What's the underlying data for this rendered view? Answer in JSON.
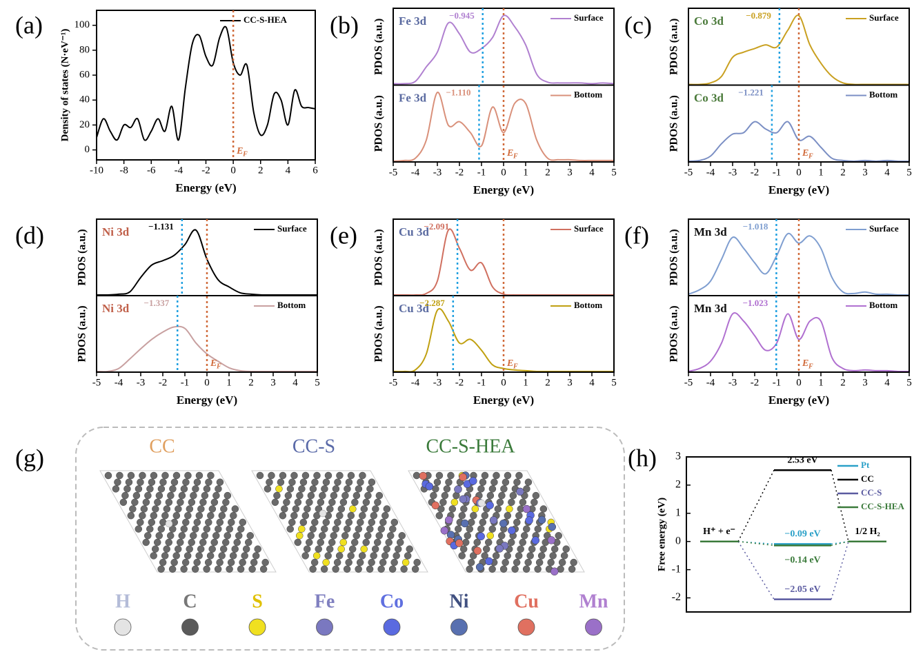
{
  "chart_data": [
    {
      "type": "line",
      "panel": "(a)",
      "xlabel": "Energy (eV)",
      "ylabel": "Density of states (N·eV⁻¹)",
      "xlim": [
        -10,
        6
      ],
      "xticks": [
        -10,
        -8,
        -6,
        -4,
        -2,
        0,
        2,
        4,
        6
      ],
      "ylim": [
        -8,
        112
      ],
      "yticks": [
        0,
        20,
        40,
        60,
        80,
        100
      ],
      "fermi": 0,
      "fermi_label": "E",
      "fermi_subscript": "F",
      "x": [
        -10,
        -9.5,
        -9,
        -8.5,
        -8,
        -7.5,
        -7,
        -6.5,
        -6,
        -5.5,
        -5,
        -4.5,
        -4,
        -3.5,
        -3,
        -2.5,
        -2,
        -1.5,
        -1,
        -0.5,
        0,
        0.5,
        1,
        1.5,
        2,
        2.5,
        3,
        3.5,
        4,
        4.5,
        5,
        5.5,
        6
      ],
      "series": [
        {
          "name": "CC-S-HEA",
          "color": "#000000",
          "values": [
            10,
            25,
            15,
            8,
            20,
            18,
            25,
            8,
            15,
            25,
            15,
            35,
            8,
            50,
            85,
            92,
            75,
            68,
            90,
            98,
            70,
            60,
            68,
            30,
            12,
            20,
            45,
            40,
            20,
            48,
            35,
            34,
            33
          ]
        }
      ]
    },
    {
      "type": "line",
      "panel": "(b)",
      "xlabel": "Energy (eV)",
      "ylabel": "PDOS (a.u.)",
      "element": "Fe 3d",
      "element_color": "#5a6aa0",
      "xlim": [
        -5,
        5
      ],
      "xticks": [
        -5,
        -4,
        -3,
        -2,
        -1,
        0,
        1,
        2,
        3,
        4,
        5
      ],
      "ylim": [
        0,
        105
      ],
      "fermi": 0,
      "fermi_label": "E",
      "fermi_subscript": "F",
      "x": [
        -5,
        -4.5,
        -4,
        -3.5,
        -3,
        -2.5,
        -2,
        -1.5,
        -1,
        -0.5,
        0,
        0.5,
        1,
        1.5,
        2,
        2.5,
        3,
        3.5,
        4,
        4.5,
        5
      ],
      "series": [
        {
          "name": "Surface",
          "color": "#b080d0",
          "center": -0.945,
          "center_label": "−0.945",
          "values": [
            2,
            2,
            5,
            25,
            45,
            85,
            70,
            45,
            50,
            65,
            95,
            80,
            55,
            15,
            4,
            3,
            3,
            3,
            2,
            3,
            2
          ]
        },
        {
          "name": "Bottom",
          "color": "#d9907a",
          "center": -1.11,
          "center_label": "−1.110",
          "values": [
            1,
            2,
            5,
            30,
            95,
            50,
            55,
            40,
            22,
            75,
            40,
            80,
            80,
            30,
            5,
            3,
            3,
            2,
            2,
            2,
            2
          ]
        }
      ]
    },
    {
      "type": "line",
      "panel": "(c)",
      "xlabel": "Energy (eV)",
      "ylabel": "PDOS (a.u.)",
      "element": "Co 3d",
      "element_color": "#4a7a3a",
      "xlim": [
        -5,
        5
      ],
      "xticks": [
        -5,
        -4,
        -3,
        -2,
        -1,
        0,
        1,
        2,
        3,
        4,
        5
      ],
      "ylim": [
        0,
        105
      ],
      "fermi": 0,
      "fermi_label": "E",
      "fermi_subscript": "F",
      "x": [
        -5,
        -4.5,
        -4,
        -3.5,
        -3,
        -2.5,
        -2,
        -1.5,
        -1,
        -0.5,
        0,
        0.5,
        1,
        1.5,
        2,
        2.5,
        3,
        3.5,
        4,
        4.5,
        5
      ],
      "series": [
        {
          "name": "Surface",
          "color": "#c9a020",
          "center": -0.879,
          "center_label": "−0.879",
          "values": [
            1,
            1,
            3,
            12,
            38,
            45,
            50,
            55,
            52,
            75,
            95,
            55,
            30,
            12,
            3,
            1,
            1,
            1,
            1,
            1,
            1
          ]
        },
        {
          "name": "Bottom",
          "color": "#7b8fc4",
          "center": -1.221,
          "center_label": "−1.221",
          "values": [
            1,
            2,
            8,
            25,
            38,
            40,
            55,
            45,
            40,
            55,
            30,
            35,
            20,
            5,
            2,
            1,
            2,
            1,
            2,
            1,
            1
          ]
        }
      ]
    },
    {
      "type": "line",
      "panel": "(d)",
      "xlabel": "Energy (eV)",
      "ylabel": "PDOS (a.u.)",
      "element": "Ni 3d",
      "element_color": "#c0604a",
      "xlim": [
        -5,
        5
      ],
      "xticks": [
        -5,
        -4,
        -3,
        -2,
        -1,
        0,
        1,
        2,
        3,
        4,
        5
      ],
      "ylim": [
        0,
        105
      ],
      "fermi": 0,
      "fermi_label": "E",
      "fermi_subscript": "F",
      "x": [
        -5,
        -4.5,
        -4,
        -3.5,
        -3,
        -2.5,
        -2,
        -1.5,
        -1,
        -0.5,
        0,
        0.5,
        1,
        1.5,
        2,
        2.5,
        3,
        3.5,
        4,
        4.5,
        5
      ],
      "series": [
        {
          "name": "Surface",
          "color": "#000000",
          "center": -1.131,
          "center_label": "−1.131",
          "values": [
            1,
            1,
            2,
            5,
            25,
            42,
            48,
            55,
            70,
            90,
            50,
            22,
            12,
            4,
            2,
            1,
            1,
            1,
            1,
            1,
            1
          ]
        },
        {
          "name": "Bottom",
          "color": "#c8a0a0",
          "center": -1.337,
          "center_label": "−1.337",
          "values": [
            1,
            1,
            5,
            18,
            32,
            45,
            55,
            62,
            60,
            40,
            25,
            15,
            6,
            2,
            1,
            1,
            1,
            1,
            1,
            1,
            1
          ]
        }
      ]
    },
    {
      "type": "line",
      "panel": "(e)",
      "xlabel": "Energy (eV)",
      "ylabel": "PDOS (a.u.)",
      "element": "Cu 3d",
      "element_color": "#5a6aa0",
      "xlim": [
        -5,
        5
      ],
      "xticks": [
        -5,
        -4,
        -3,
        -2,
        -1,
        0,
        1,
        2,
        3,
        4,
        5
      ],
      "ylim": [
        0,
        105
      ],
      "fermi": 0,
      "fermi_label": "E",
      "fermi_subscript": "F",
      "x": [
        -5,
        -4.5,
        -4,
        -3.5,
        -3,
        -2.5,
        -2,
        -1.5,
        -1,
        -0.5,
        0,
        0.5,
        1,
        1.5,
        2,
        2.5,
        3,
        3.5,
        4,
        4.5,
        5
      ],
      "series": [
        {
          "name": "Surface",
          "color": "#d07060",
          "center": -2.091,
          "center_label": "−2.091",
          "values": [
            1,
            1,
            1,
            3,
            20,
            90,
            65,
            35,
            45,
            12,
            2,
            1,
            1,
            1,
            1,
            1,
            1,
            1,
            1,
            1,
            1
          ]
        },
        {
          "name": "Bottom",
          "color": "#c0a010",
          "center": -2.287,
          "center_label": "−2.287",
          "values": [
            1,
            1,
            3,
            25,
            85,
            70,
            40,
            45,
            30,
            10,
            5,
            3,
            2,
            1,
            1,
            1,
            1,
            1,
            1,
            1,
            1
          ]
        }
      ]
    },
    {
      "type": "line",
      "panel": "(f)",
      "xlabel": "Energy (eV)",
      "ylabel": "PDOS (a.u.)",
      "element": "Mn 3d",
      "element_color": "#111111",
      "xlim": [
        -5,
        5
      ],
      "xticks": [
        -5,
        -4,
        -3,
        -2,
        -1,
        0,
        1,
        2,
        3,
        4,
        5
      ],
      "ylim": [
        0,
        105
      ],
      "fermi": 0,
      "fermi_label": "E",
      "fermi_subscript": "F",
      "x": [
        -5,
        -4.5,
        -4,
        -3.5,
        -3,
        -2.5,
        -2,
        -1.5,
        -1,
        -0.5,
        0,
        0.5,
        1,
        1.5,
        2,
        2.5,
        3,
        3.5,
        4,
        4.5,
        5
      ],
      "series": [
        {
          "name": "Surface",
          "color": "#7f9ed0",
          "center": -1.018,
          "center_label": "−1.018",
          "values": [
            2,
            8,
            20,
            50,
            80,
            65,
            45,
            30,
            55,
            85,
            72,
            82,
            65,
            25,
            5,
            3,
            5,
            2,
            2,
            1,
            1
          ]
        },
        {
          "name": "Bottom",
          "color": "#b070d0",
          "center": -1.023,
          "center_label": "−1.023",
          "values": [
            1,
            5,
            15,
            40,
            80,
            70,
            50,
            30,
            40,
            80,
            45,
            70,
            70,
            20,
            5,
            2,
            3,
            2,
            2,
            1,
            1
          ]
        }
      ]
    },
    {
      "type": "structures",
      "panel": "(g)",
      "structures": [
        {
          "name": "CC",
          "color": "#e0a060"
        },
        {
          "name": "CC-S",
          "color": "#5a6aa8"
        },
        {
          "name": "CC-S-HEA",
          "color": "#3a7a3a"
        }
      ],
      "elements": [
        {
          "name": "H",
          "color": "#e4e4e4",
          "label_color": "#b4bcd8"
        },
        {
          "name": "C",
          "color": "#5a5a5a",
          "label_color": "#777777"
        },
        {
          "name": "S",
          "color": "#f0e020",
          "label_color": "#e0c000"
        },
        {
          "name": "Fe",
          "color": "#7a78c0",
          "label_color": "#8080c0"
        },
        {
          "name": "Co",
          "color": "#5a6ae0",
          "label_color": "#6070e0"
        },
        {
          "name": "Ni",
          "color": "#5870b0",
          "label_color": "#405080"
        },
        {
          "name": "Cu",
          "color": "#e07060",
          "label_color": "#e07060"
        },
        {
          "name": "Mn",
          "color": "#9a70c8",
          "label_color": "#b080d0"
        }
      ]
    },
    {
      "type": "step",
      "panel": "(h)",
      "ylabel": "Free energy (eV)",
      "ylim": [
        -2.5,
        3
      ],
      "yticks": [
        -2,
        -1,
        0,
        1,
        2,
        3
      ],
      "categories": [
        "H⁺ + e⁻",
        null,
        "1/2 H₂"
      ],
      "series": [
        {
          "name": "Pt",
          "color": "#2aa0c8",
          "values": [
            0,
            -0.09,
            0
          ],
          "value_labels": [
            null,
            "−0.09 eV",
            null
          ],
          "label_side": "above"
        },
        {
          "name": "CC",
          "color": "#000000",
          "values": [
            0,
            2.53,
            0
          ],
          "value_labels": [
            null,
            "2.53 eV",
            null
          ],
          "label_side": "above"
        },
        {
          "name": "CC-S",
          "color": "#5a5aa0",
          "values": [
            0,
            -2.05,
            0
          ],
          "value_labels": [
            null,
            "−2.05 eV",
            null
          ],
          "label_side": "above"
        },
        {
          "name": "CC-S-HEA",
          "color": "#3a7a3a",
          "values": [
            0,
            -0.14,
            0
          ],
          "value_labels": [
            null,
            "−0.14 eV",
            null
          ],
          "label_side": "below"
        }
      ]
    }
  ]
}
